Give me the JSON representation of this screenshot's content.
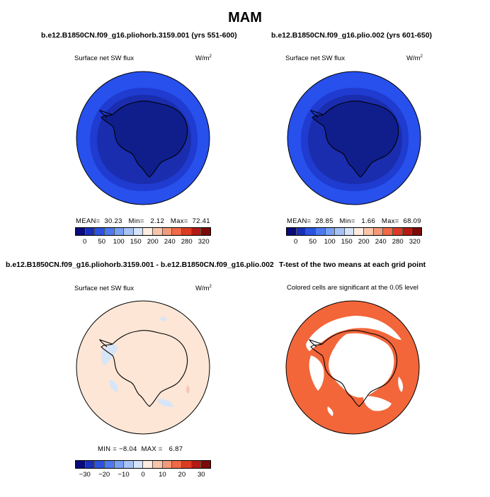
{
  "title": "MAM",
  "colors": {
    "outer_ocean": "#2750ec",
    "mid_band": "#1f3bd0",
    "inner_band": "#1a2dae",
    "antarctica": "#101e8c",
    "diff_bg": "#fde6d6",
    "diff_neg": "#d6e6f8",
    "diff_pos": "#f8c7b8",
    "sig_cells": "#f2663a",
    "nonsig": "#ffffff"
  },
  "colorbar_colors": [
    "#0a0a7a",
    "#1a2fb8",
    "#2a54e0",
    "#4d7aee",
    "#7aa0f2",
    "#a7c3f6",
    "#d6e4fa",
    "#fdecdf",
    "#fac4ab",
    "#f59a79",
    "#ef6a45",
    "#db3b24",
    "#b51a12",
    "#7d0a06"
  ],
  "panels": [
    {
      "title": "b.e12.B1850CN.f09_g16.pliohorb.3159.001 (yrs 551-600)",
      "subtitle_left": "Surface net SW flux",
      "units": "W/m",
      "units_sup": "2",
      "stats": {
        "mean_label": "MEAN=",
        "mean": "30.23",
        "min_label": "Min=",
        "min": "2.12",
        "max_label": "Max=",
        "max": "72.41"
      },
      "colorbar_ticks": [
        "0",
        "50",
        "100",
        "150",
        "200",
        "240",
        "280",
        "320"
      ]
    },
    {
      "title": "b.e12.B1850CN.f09_g16.plio.002 (yrs 601-650)",
      "subtitle_left": "Surface net SW flux",
      "units": "W/m",
      "units_sup": "2",
      "stats": {
        "mean_label": "MEAN=",
        "mean": "28.85",
        "min_label": "Min=",
        "min": "1.66",
        "max_label": "Max=",
        "max": "68.09"
      },
      "colorbar_ticks": [
        "0",
        "50",
        "100",
        "150",
        "200",
        "240",
        "280",
        "320"
      ]
    },
    {
      "title": "b.e12.B1850CN.f09_g16.pliohorb.3159.001 - b.e12.B1850CN.f09_g16.plio.002",
      "subtitle_left": "Surface net SW flux",
      "units": "W/m",
      "units_sup": "2",
      "stats": {
        "min_label": "MIN =",
        "min": "−8.04",
        "max_label": "MAX =",
        "max": "6.87"
      },
      "colorbar_ticks": [
        "−30",
        "−20",
        "−10",
        "0",
        "10",
        "20",
        "30"
      ]
    },
    {
      "title": "T-test of the two means at each grid point",
      "subtitle_center": "Colored cells are significant at the 0.05 level"
    }
  ]
}
